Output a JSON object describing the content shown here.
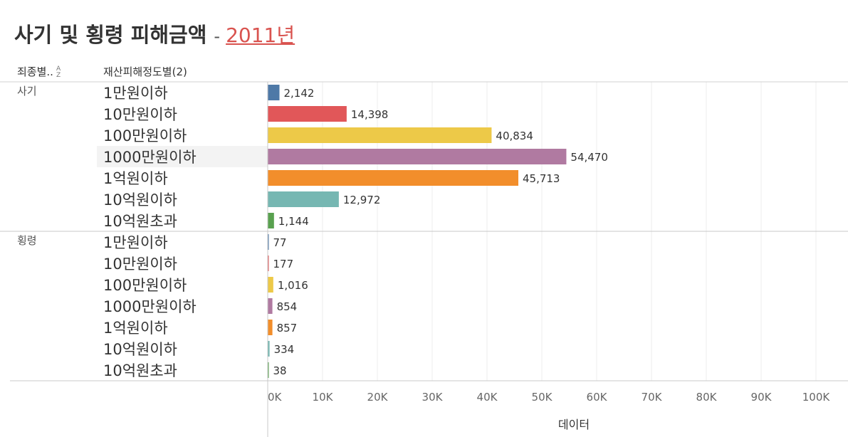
{
  "header": {
    "title": "사기 및 횡령 피해금액",
    "separator": "-",
    "year": "2011년",
    "col1_label": "죄종별..",
    "col2_label": "재산피해정도별(2)"
  },
  "colors": {
    "1만원이하": "#4e79a7",
    "10만원이하": "#e15759",
    "100만원이하": "#edc948",
    "1000만원이하": "#b07aa1",
    "1억원이하": "#f28e2b",
    "10억원이하": "#76b7b2",
    "10억원초과": "#59a14f"
  },
  "chart_data": {
    "type": "bar",
    "orientation": "horizontal",
    "xlabel": "데이터",
    "xlim": [
      0,
      105000
    ],
    "xticks": [
      0,
      10000,
      20000,
      30000,
      40000,
      50000,
      60000,
      70000,
      80000,
      90000,
      100000
    ],
    "xtick_labels": [
      "0K",
      "10K",
      "20K",
      "30K",
      "40K",
      "50K",
      "60K",
      "70K",
      "80K",
      "90K",
      "100K"
    ],
    "grid": true,
    "highlighted": {
      "group": "사기",
      "category": "1000만원이하"
    },
    "groups": [
      {
        "name": "사기",
        "rows": [
          {
            "category": "1만원이하",
            "value": 2142,
            "label": "2,142"
          },
          {
            "category": "10만원이하",
            "value": 14398,
            "label": "14,398"
          },
          {
            "category": "100만원이하",
            "value": 40834,
            "label": "40,834"
          },
          {
            "category": "1000만원이하",
            "value": 54470,
            "label": "54,470"
          },
          {
            "category": "1억원이하",
            "value": 45713,
            "label": "45,713"
          },
          {
            "category": "10억원이하",
            "value": 12972,
            "label": "12,972"
          },
          {
            "category": "10억원초과",
            "value": 1144,
            "label": "1,144"
          }
        ]
      },
      {
        "name": "횡령",
        "rows": [
          {
            "category": "1만원이하",
            "value": 77,
            "label": "77"
          },
          {
            "category": "10만원이하",
            "value": 177,
            "label": "177"
          },
          {
            "category": "100만원이하",
            "value": 1016,
            "label": "1,016"
          },
          {
            "category": "1000만원이하",
            "value": 854,
            "label": "854"
          },
          {
            "category": "1억원이하",
            "value": 857,
            "label": "857"
          },
          {
            "category": "10억원이하",
            "value": 334,
            "label": "334"
          },
          {
            "category": "10억원초과",
            "value": 38,
            "label": "38"
          }
        ]
      }
    ]
  }
}
